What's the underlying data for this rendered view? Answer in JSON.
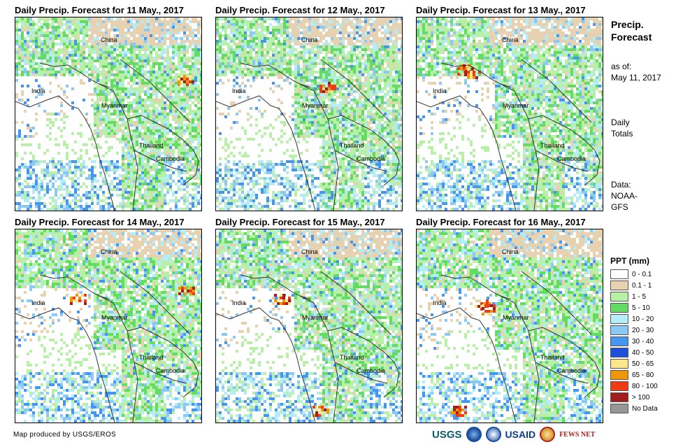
{
  "panels": [
    {
      "title": "Daily Precip. Forecast for 11 May., 2017",
      "labels": {
        "china": "China",
        "india": "India",
        "myanmar": "Myanmar",
        "thailand": "Thailand",
        "cambodia": "Cambodia"
      }
    },
    {
      "title": "Daily Precip. Forecast for 12 May., 2017",
      "labels": {
        "china": "China",
        "india": "India",
        "myanmar": "Myanmar",
        "thailand": "Thailand",
        "cambodia": "Cambodia"
      }
    },
    {
      "title": "Daily Precip. Forecast for 13 May., 2017",
      "labels": {
        "china": "China",
        "india": "India",
        "myanmar": "Myanmar",
        "thailand": "Thailand",
        "cambodia": "Cambodia"
      }
    },
    {
      "title": "Daily Precip. Forecast for 14 May., 2017",
      "labels": {
        "china": "China",
        "india": "India",
        "myanmar": "Myanmar",
        "thailand": "Thailand",
        "cambodia": "Cambodia"
      }
    },
    {
      "title": "Daily Precip. Forecast for 15 May., 2017",
      "labels": {
        "china": "China",
        "india": "India",
        "myanmar": "Myanmar",
        "thailand": "Thailand",
        "cambodia": "Cambodia"
      }
    },
    {
      "title": "Daily Precip. Forecast for 16 May., 2017",
      "labels": {
        "china": "China",
        "india": "India",
        "myanmar": "Myanmar",
        "thailand": "Thailand",
        "cambodia": "Cambodia"
      }
    }
  ],
  "sidebar": {
    "title_line1": "Precip.",
    "title_line2": "Forecast",
    "asof_line1": "as of:",
    "asof_line2": "May 11, 2017",
    "daily_line1": "Daily",
    "daily_line2": "Totals",
    "data_line1": "Data:",
    "data_line2": "NOAA-",
    "data_line3": "GFS"
  },
  "legend": {
    "title": "PPT (mm)",
    "items": [
      {
        "label": "0 - 0.1",
        "color": "#ffffff"
      },
      {
        "label": "0.1 - 1",
        "color": "#e6d2b0"
      },
      {
        "label": "1 - 5",
        "color": "#b8f0a8"
      },
      {
        "label": "5 - 10",
        "color": "#64dc64"
      },
      {
        "label": "10 - 20",
        "color": "#b4ecf8"
      },
      {
        "label": "20 - 30",
        "color": "#8cc8f4"
      },
      {
        "label": "30 - 40",
        "color": "#4696f0"
      },
      {
        "label": "40 - 50",
        "color": "#1e50dc"
      },
      {
        "label": "50 - 65",
        "color": "#fae68c"
      },
      {
        "label": "65 - 80",
        "color": "#f0960a"
      },
      {
        "label": "80 - 100",
        "color": "#f03c14"
      },
      {
        "label": "> 100",
        "color": "#a01e1e"
      },
      {
        "label": "No Data",
        "color": "#969696"
      }
    ]
  },
  "credit": "Map produced by USGS/EROS",
  "logos": {
    "usgs": "USGS",
    "usaid": "USAID",
    "fews": "FEWS NET"
  }
}
